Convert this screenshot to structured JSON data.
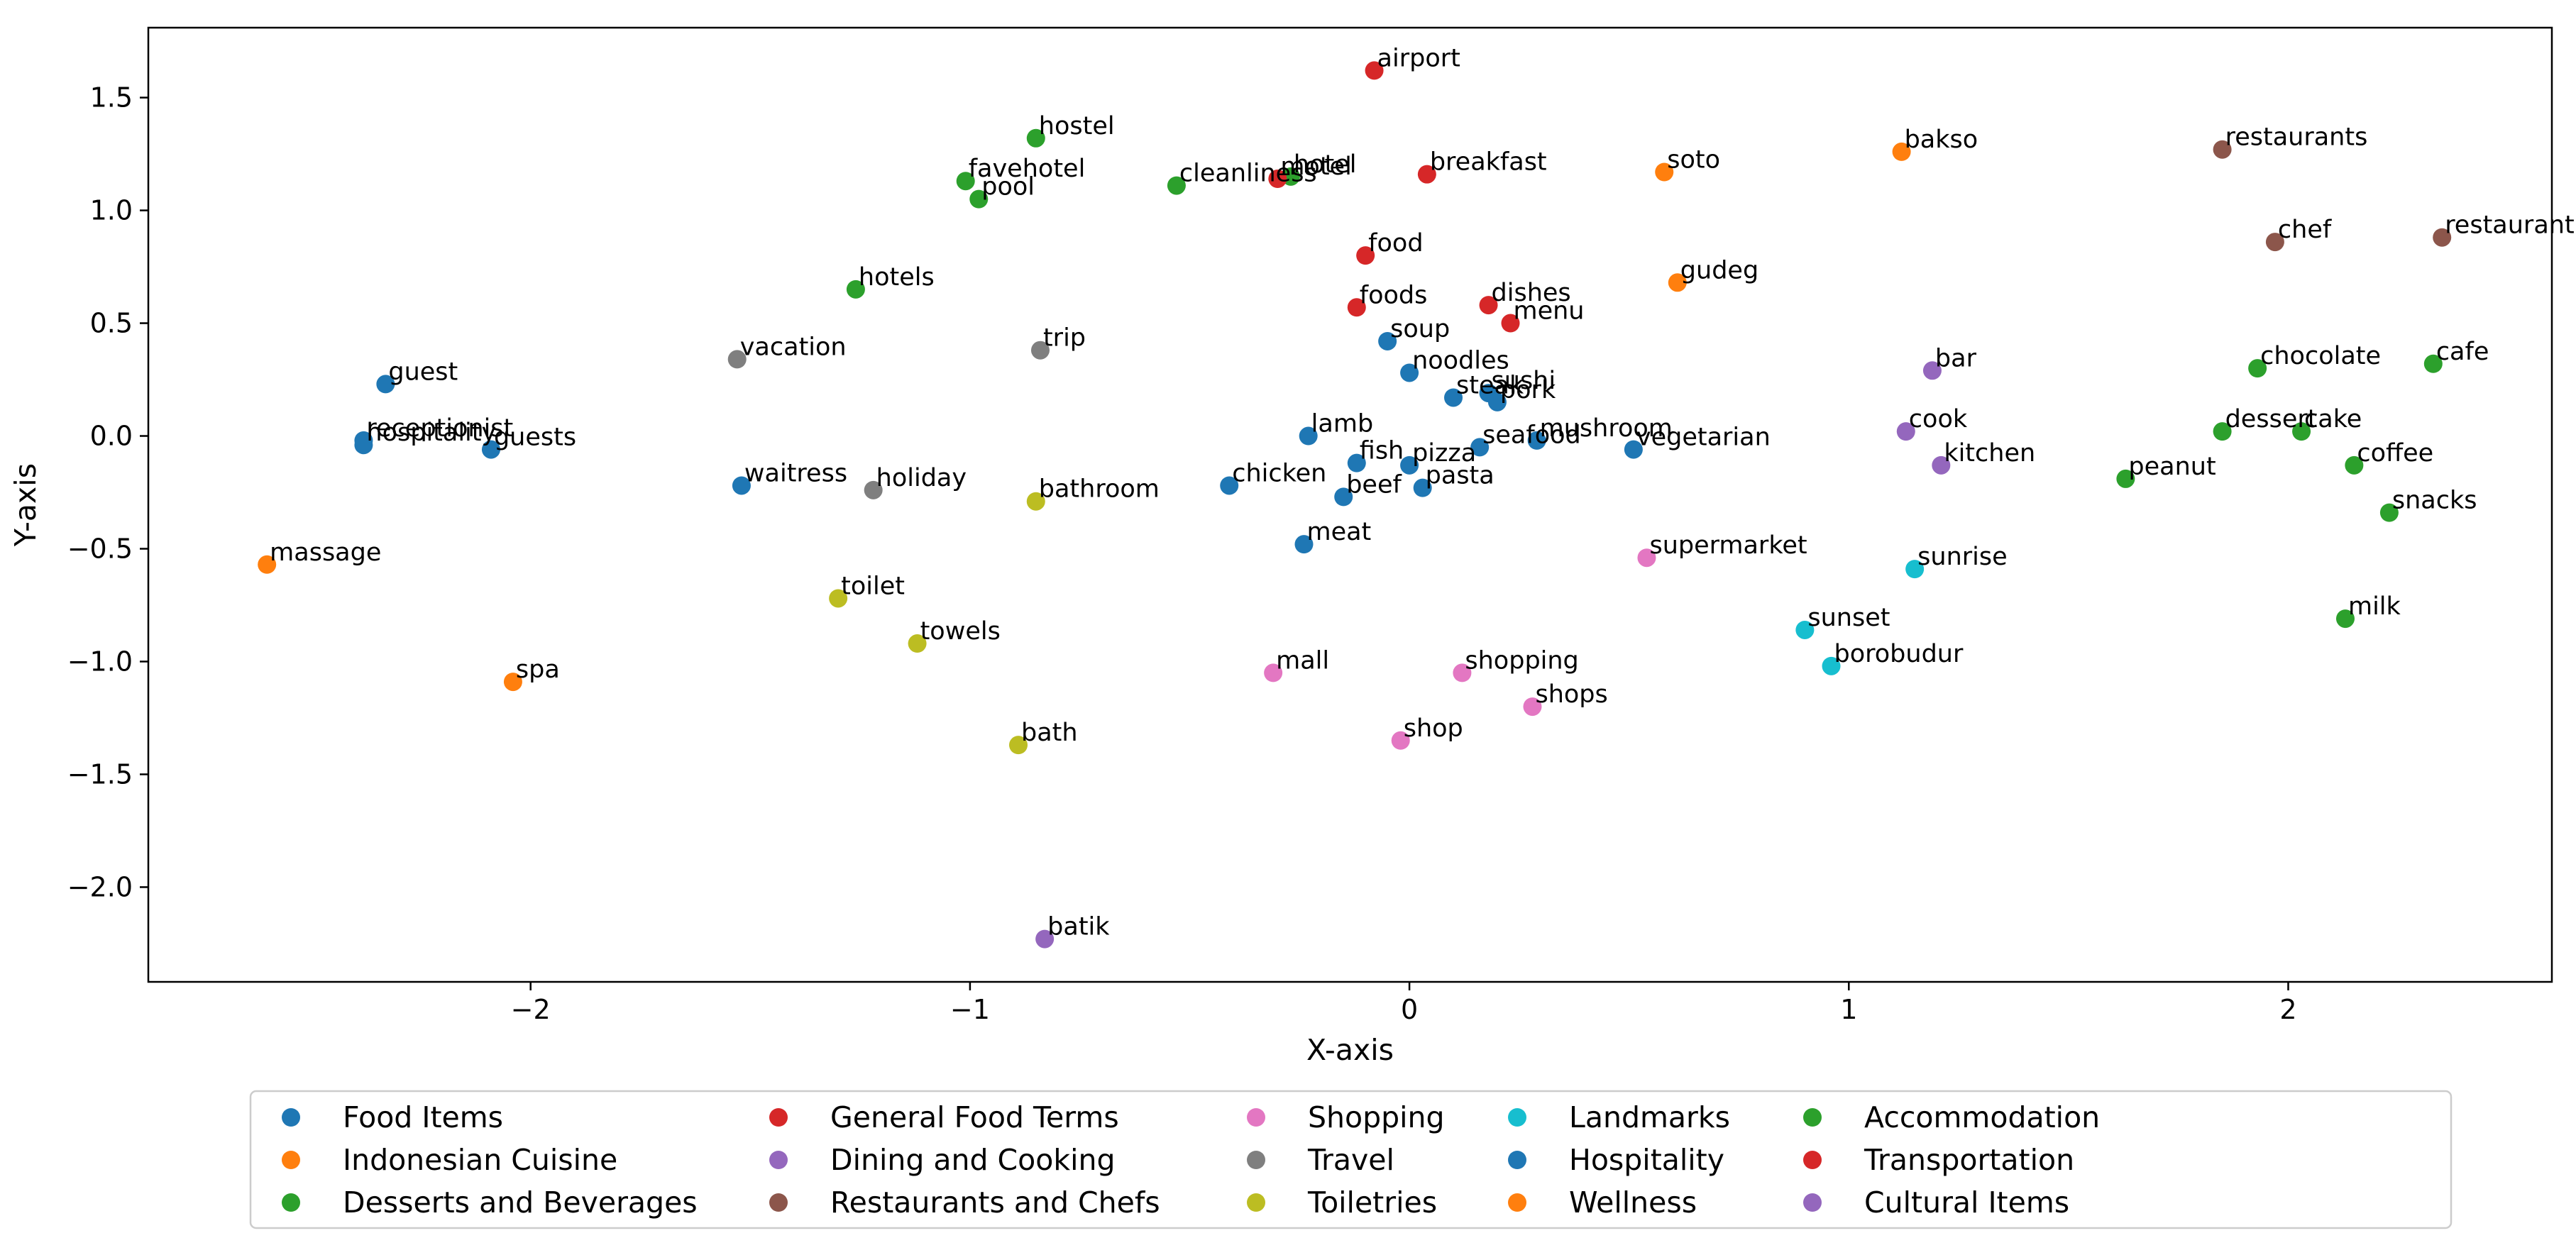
{
  "chart_data": {
    "type": "scatter",
    "title": "",
    "xlabel": "X-axis",
    "ylabel": "Y-axis",
    "xlim": [
      -2.87,
      2.6
    ],
    "ylim": [
      -2.42,
      1.81
    ],
    "xticks": [
      {
        "value": -2,
        "label": "−2"
      },
      {
        "value": -1,
        "label": "−1"
      },
      {
        "value": 0,
        "label": "0"
      },
      {
        "value": 1,
        "label": "1"
      },
      {
        "value": 2,
        "label": "2"
      }
    ],
    "yticks": [
      {
        "value": 1.5,
        "label": "1.5"
      },
      {
        "value": 1.0,
        "label": "1.0"
      },
      {
        "value": 0.5,
        "label": "0.5"
      },
      {
        "value": 0.0,
        "label": "0.0"
      },
      {
        "value": -0.5,
        "label": "−0.5"
      },
      {
        "value": -1.0,
        "label": "−1.0"
      },
      {
        "value": -1.5,
        "label": "−1.5"
      },
      {
        "value": -2.0,
        "label": "−2.0"
      }
    ],
    "grid": false,
    "legend_position": "bottom-center",
    "legend_columns": 6,
    "series": [
      {
        "name": "Food Items",
        "color": "#1f77b4",
        "points": [
          {
            "label": "soup",
            "x": -0.05,
            "y": 0.42
          },
          {
            "label": "noodles",
            "x": 0.0,
            "y": 0.28
          },
          {
            "label": "steak",
            "x": 0.1,
            "y": 0.17
          },
          {
            "label": "sushi",
            "x": 0.18,
            "y": 0.19
          },
          {
            "label": "pork",
            "x": 0.2,
            "y": 0.15
          },
          {
            "label": "lamb",
            "x": -0.23,
            "y": 0.0
          },
          {
            "label": "fish",
            "x": -0.12,
            "y": -0.12
          },
          {
            "label": "pizza",
            "x": 0.0,
            "y": -0.13
          },
          {
            "label": "seafood",
            "x": 0.16,
            "y": -0.05
          },
          {
            "label": "mushroom",
            "x": 0.29,
            "y": -0.02
          },
          {
            "label": "vegetarian",
            "x": 0.51,
            "y": -0.06
          },
          {
            "label": "chicken",
            "x": -0.41,
            "y": -0.22
          },
          {
            "label": "beef",
            "x": -0.15,
            "y": -0.27
          },
          {
            "label": "pasta",
            "x": 0.03,
            "y": -0.23
          },
          {
            "label": "meat",
            "x": -0.24,
            "y": -0.48
          }
        ]
      },
      {
        "name": "Indonesian Cuisine",
        "color": "#ff7f0e",
        "points": [
          {
            "label": "soto",
            "x": 0.58,
            "y": 1.17
          },
          {
            "label": "bakso",
            "x": 1.12,
            "y": 1.26
          },
          {
            "label": "gudeg",
            "x": 0.61,
            "y": 0.68
          }
        ]
      },
      {
        "name": "Desserts and Beverages",
        "color": "#2ca02c",
        "points": [
          {
            "label": "chocolate",
            "x": 1.93,
            "y": 0.3
          },
          {
            "label": "cafe",
            "x": 2.33,
            "y": 0.32
          },
          {
            "label": "dessert",
            "x": 1.85,
            "y": 0.02
          },
          {
            "label": "cake",
            "x": 2.03,
            "y": 0.02
          },
          {
            "label": "peanut",
            "x": 1.63,
            "y": -0.19
          },
          {
            "label": "coffee",
            "x": 2.15,
            "y": -0.13
          },
          {
            "label": "snacks",
            "x": 2.23,
            "y": -0.34
          },
          {
            "label": "milk",
            "x": 2.13,
            "y": -0.81
          }
        ]
      },
      {
        "name": "General Food Terms",
        "color": "#d62728",
        "points": [
          {
            "label": "breakfast",
            "x": 0.04,
            "y": 1.16
          },
          {
            "label": "food",
            "x": -0.1,
            "y": 0.8
          },
          {
            "label": "foods",
            "x": -0.12,
            "y": 0.57
          },
          {
            "label": "dishes",
            "x": 0.18,
            "y": 0.58
          },
          {
            "label": "menu",
            "x": 0.23,
            "y": 0.5
          }
        ]
      },
      {
        "name": "Dining and Cooking",
        "color": "#9467bd",
        "points": [
          {
            "label": "bar",
            "x": 1.19,
            "y": 0.29
          },
          {
            "label": "cook",
            "x": 1.13,
            "y": 0.02
          },
          {
            "label": "kitchen",
            "x": 1.21,
            "y": -0.13
          }
        ]
      },
      {
        "name": "Restaurants and Chefs",
        "color": "#8c564b",
        "points": [
          {
            "label": "restaurants",
            "x": 1.85,
            "y": 1.27
          },
          {
            "label": "chef",
            "x": 1.97,
            "y": 0.86
          },
          {
            "label": "restaurant",
            "x": 2.35,
            "y": 0.88
          }
        ]
      },
      {
        "name": "Shopping",
        "color": "#e377c2",
        "points": [
          {
            "label": "supermarket",
            "x": 0.54,
            "y": -0.54
          },
          {
            "label": "mall",
            "x": -0.31,
            "y": -1.05
          },
          {
            "label": "shopping",
            "x": 0.12,
            "y": -1.05
          },
          {
            "label": "shops",
            "x": 0.28,
            "y": -1.2
          },
          {
            "label": "shop",
            "x": -0.02,
            "y": -1.35
          }
        ]
      },
      {
        "name": "Travel",
        "color": "#7f7f7f",
        "points": [
          {
            "label": "vacation",
            "x": -1.53,
            "y": 0.34
          },
          {
            "label": "trip",
            "x": -0.84,
            "y": 0.38
          },
          {
            "label": "holiday",
            "x": -1.22,
            "y": -0.24
          }
        ]
      },
      {
        "name": "Toiletries",
        "color": "#bcbd22",
        "points": [
          {
            "label": "bathroom",
            "x": -0.85,
            "y": -0.29
          },
          {
            "label": "toilet",
            "x": -1.3,
            "y": -0.72
          },
          {
            "label": "towels",
            "x": -1.12,
            "y": -0.92
          },
          {
            "label": "bath",
            "x": -0.89,
            "y": -1.37
          }
        ]
      },
      {
        "name": "Landmarks",
        "color": "#17becf",
        "points": [
          {
            "label": "sunrise",
            "x": 1.15,
            "y": -0.59
          },
          {
            "label": "sunset",
            "x": 0.9,
            "y": -0.86
          },
          {
            "label": "borobudur",
            "x": 0.96,
            "y": -1.02
          }
        ]
      },
      {
        "name": "Hospitality",
        "color": "#1f77b4",
        "points": [
          {
            "label": "guest",
            "x": -2.33,
            "y": 0.23
          },
          {
            "label": "receptionist",
            "x": -2.38,
            "y": -0.02
          },
          {
            "label": "hospitality",
            "x": -2.38,
            "y": -0.04
          },
          {
            "label": "guests",
            "x": -2.09,
            "y": -0.06
          },
          {
            "label": "waitress",
            "x": -1.52,
            "y": -0.22
          }
        ]
      },
      {
        "name": "Wellness",
        "color": "#ff7f0e",
        "points": [
          {
            "label": "massage",
            "x": -2.6,
            "y": -0.57
          },
          {
            "label": "spa",
            "x": -2.04,
            "y": -1.09
          }
        ]
      },
      {
        "name": "Accommodation",
        "color": "#2ca02c",
        "points": [
          {
            "label": "hostel",
            "x": -0.85,
            "y": 1.32
          },
          {
            "label": "favehotel",
            "x": -1.01,
            "y": 1.13
          },
          {
            "label": "pool",
            "x": -0.98,
            "y": 1.05
          },
          {
            "label": "cleanliness",
            "x": -0.53,
            "y": 1.11
          },
          {
            "label": "hotel",
            "x": -0.27,
            "y": 1.15
          },
          {
            "label": "hotels",
            "x": -1.26,
            "y": 0.65
          }
        ]
      },
      {
        "name": "Transportation",
        "color": "#d62728",
        "points": [
          {
            "label": "airport",
            "x": -0.08,
            "y": 1.62
          },
          {
            "label": "motel",
            "x": -0.3,
            "y": 1.14
          }
        ]
      },
      {
        "name": "Cultural Items",
        "color": "#9467bd",
        "points": [
          {
            "label": "batik",
            "x": -0.83,
            "y": -2.23
          }
        ]
      }
    ]
  }
}
